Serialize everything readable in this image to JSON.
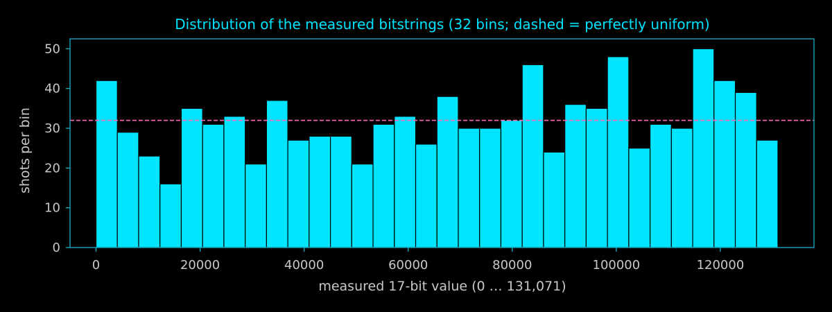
{
  "chart_data": {
    "type": "bar",
    "title": "Distribution of the measured bitstrings (32 bins; dashed = perfectly uniform)",
    "xlabel": "measured 17-bit value (0 … 131,071)",
    "ylabel": "shots per bin",
    "bin_width": 4096,
    "bin_starts": [
      0,
      4096,
      8192,
      12288,
      16384,
      20480,
      24576,
      28672,
      32768,
      36864,
      40960,
      45056,
      49152,
      53248,
      57344,
      61440,
      65536,
      69632,
      73728,
      77824,
      81920,
      86016,
      90112,
      94208,
      98304,
      102400,
      106496,
      110592,
      114688,
      118784,
      122880,
      126976
    ],
    "values": [
      42,
      29,
      23,
      16,
      35,
      31,
      33,
      21,
      37,
      27,
      28,
      28,
      21,
      31,
      33,
      26,
      38,
      30,
      30,
      32,
      46,
      24,
      36,
      35,
      48,
      25,
      31,
      30,
      50,
      42,
      39,
      27
    ],
    "uniform_level": 32,
    "xlim": [
      -5000,
      138000
    ],
    "ylim": [
      0,
      52.5
    ],
    "xticks": [
      0,
      20000,
      40000,
      60000,
      80000,
      100000,
      120000
    ],
    "xtick_labels": [
      "0",
      "20000",
      "40000",
      "60000",
      "80000",
      "100000",
      "120000"
    ],
    "yticks": [
      0,
      10,
      20,
      30,
      40,
      50
    ],
    "ytick_labels": [
      "0",
      "10",
      "20",
      "30",
      "40",
      "50"
    ],
    "grid": false,
    "colors": {
      "bar": "#00e5ff",
      "bar_edge": "#000000",
      "uniform_line": "#ff69b4",
      "axes": "#1ab0c8",
      "text": "#c8c8c8",
      "title": "#00e5ff",
      "background": "#000000"
    }
  }
}
